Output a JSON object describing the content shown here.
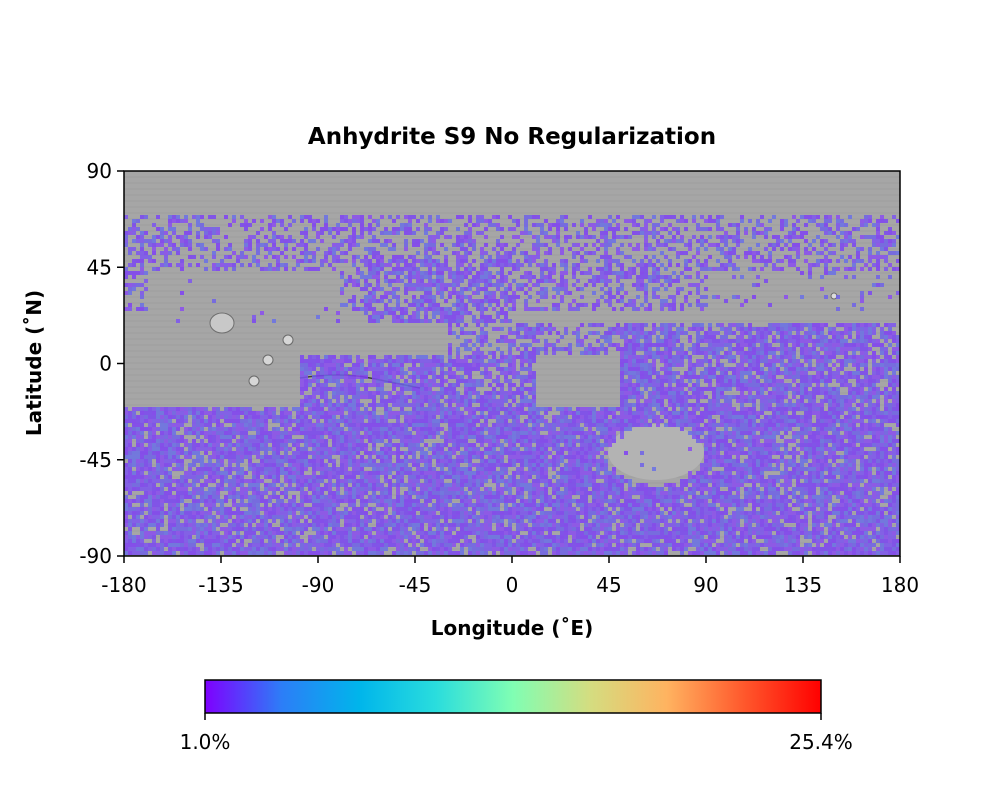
{
  "chart_data": {
    "type": "heatmap",
    "title": "Anhydrite S9 No Regularization",
    "xlabel": "Longitude (˚E)",
    "ylabel": "Latitude (˚N)",
    "xlim": [
      -180,
      180
    ],
    "ylim": [
      -90,
      90
    ],
    "xticks": [
      "-180",
      "-135",
      "-90",
      "-45",
      "0",
      "45",
      "90",
      "135",
      "180"
    ],
    "yticks": [
      "90",
      "45",
      "0",
      "-45",
      "-90"
    ],
    "basemap": "grayscale shaded relief",
    "colormap": "rainbow",
    "colorbar": {
      "min_label": "1.0%",
      "max_label": "25.4%",
      "min": 1.0,
      "max": 25.4,
      "orientation": "horizontal",
      "colors": [
        "#7f00ff",
        "#2c7ef7",
        "#00b5eb",
        "#2adddd",
        "#80feb3",
        "#d4dd80",
        "#ffb360",
        "#ff582c",
        "#ff0000"
      ]
    },
    "typical_abundance_color": "#7d55f0",
    "coverage_bands_lat": [
      {
        "lat_range": [
          -90,
          -20
        ],
        "coverage": "dense"
      },
      {
        "lat_range": [
          25,
          70
        ],
        "coverage": "patchy"
      }
    ]
  }
}
